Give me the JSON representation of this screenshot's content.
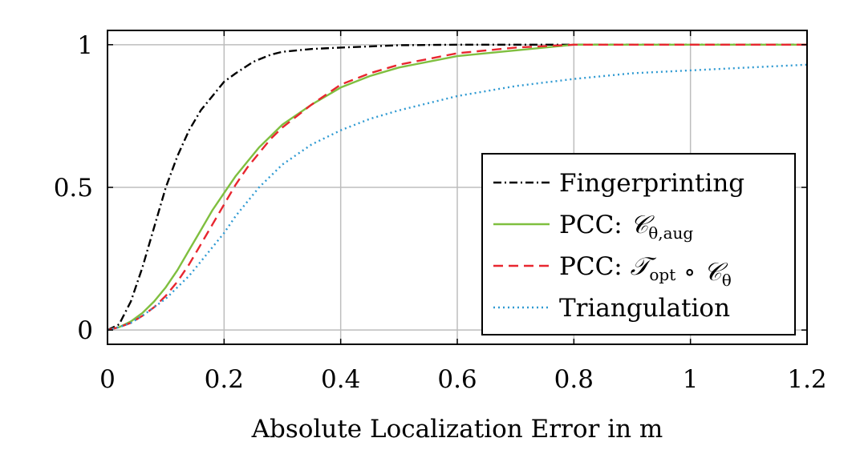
{
  "chart_data": {
    "type": "line",
    "title": "",
    "xlabel": "Absolute Localization Error in m",
    "ylabel": "",
    "xlim": [
      0,
      1.2
    ],
    "ylim": [
      -0.05,
      1.05
    ],
    "xticks": [
      0,
      0.2,
      0.4,
      0.6,
      0.8,
      1,
      1.2
    ],
    "xtick_labels": [
      "0",
      "0.2",
      "0.4",
      "0.6",
      "0.8",
      "1",
      "1.2"
    ],
    "yticks": [
      0,
      0.5,
      1
    ],
    "ytick_labels": [
      "0",
      "0.5",
      "1"
    ],
    "grid": true,
    "legend_position": "lower-right",
    "series": [
      {
        "name": "Fingerprinting",
        "legend_parts": [
          {
            "text": "Fingerprinting"
          }
        ],
        "color": "#000000",
        "dash": "dashdot",
        "x": [
          0,
          0.02,
          0.04,
          0.06,
          0.08,
          0.1,
          0.12,
          0.14,
          0.16,
          0.18,
          0.2,
          0.22,
          0.25,
          0.28,
          0.3,
          0.35,
          0.4,
          0.5,
          0.6,
          0.8,
          1,
          1.2
        ],
        "y": [
          0,
          0.02,
          0.1,
          0.22,
          0.36,
          0.5,
          0.61,
          0.7,
          0.77,
          0.82,
          0.87,
          0.9,
          0.94,
          0.965,
          0.975,
          0.985,
          0.99,
          0.998,
          1,
          1,
          1,
          1
        ]
      },
      {
        "name": "PCC: C_θ,aug",
        "legend_parts": [
          {
            "text": "PCC: "
          },
          {
            "text": "𝒞",
            "italic": true
          },
          {
            "text": "θ,aug",
            "sub": true
          }
        ],
        "color": "#7fbf3f",
        "dash": "solid",
        "x": [
          0,
          0.02,
          0.04,
          0.06,
          0.08,
          0.1,
          0.12,
          0.14,
          0.16,
          0.18,
          0.2,
          0.22,
          0.24,
          0.26,
          0.28,
          0.3,
          0.35,
          0.4,
          0.45,
          0.5,
          0.6,
          0.7,
          0.8,
          1,
          1.2
        ],
        "y": [
          0,
          0.01,
          0.03,
          0.06,
          0.1,
          0.15,
          0.21,
          0.28,
          0.35,
          0.42,
          0.48,
          0.54,
          0.59,
          0.64,
          0.68,
          0.72,
          0.79,
          0.85,
          0.89,
          0.92,
          0.96,
          0.98,
          1,
          1,
          1
        ]
      },
      {
        "name": "PCC: T_opt ∘ C_θ",
        "legend_parts": [
          {
            "text": "PCC: "
          },
          {
            "text": "𝒯",
            "italic": true
          },
          {
            "text": "opt",
            "sub": true
          },
          {
            "text": " ∘ "
          },
          {
            "text": "𝒞",
            "italic": true
          },
          {
            "text": "θ",
            "sub": true
          }
        ],
        "color": "#e8262f",
        "dash": "dashed",
        "x": [
          0,
          0.02,
          0.04,
          0.06,
          0.08,
          0.1,
          0.12,
          0.14,
          0.16,
          0.18,
          0.2,
          0.22,
          0.24,
          0.26,
          0.28,
          0.3,
          0.35,
          0.4,
          0.45,
          0.5,
          0.6,
          0.7,
          0.8,
          1,
          1.2
        ],
        "y": [
          0,
          0.01,
          0.025,
          0.05,
          0.08,
          0.12,
          0.17,
          0.23,
          0.3,
          0.37,
          0.44,
          0.51,
          0.57,
          0.62,
          0.67,
          0.71,
          0.79,
          0.86,
          0.9,
          0.93,
          0.97,
          0.99,
          1,
          1,
          1
        ]
      },
      {
        "name": "Triangulation",
        "legend_parts": [
          {
            "text": "Triangulation"
          }
        ],
        "color": "#2f9ad2",
        "dash": "dotted",
        "x": [
          0,
          0.02,
          0.04,
          0.06,
          0.08,
          0.1,
          0.12,
          0.14,
          0.16,
          0.18,
          0.2,
          0.22,
          0.24,
          0.26,
          0.28,
          0.3,
          0.35,
          0.4,
          0.45,
          0.5,
          0.6,
          0.7,
          0.8,
          0.9,
          1,
          1.1,
          1.2
        ],
        "y": [
          0,
          0.01,
          0.025,
          0.05,
          0.08,
          0.11,
          0.15,
          0.19,
          0.24,
          0.29,
          0.34,
          0.4,
          0.45,
          0.5,
          0.54,
          0.58,
          0.65,
          0.7,
          0.74,
          0.77,
          0.82,
          0.855,
          0.88,
          0.9,
          0.91,
          0.92,
          0.93
        ]
      }
    ]
  }
}
